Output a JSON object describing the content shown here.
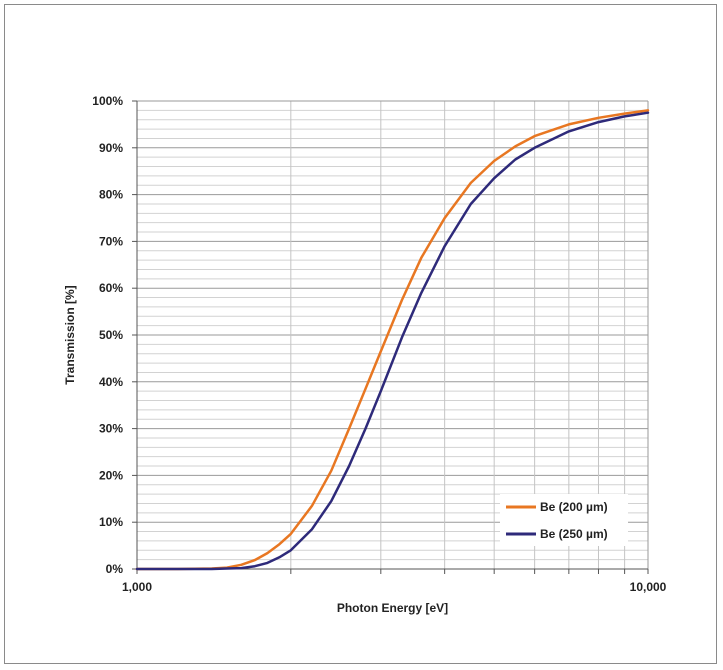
{
  "chart_data": {
    "type": "line",
    "xlabel": "Photon Energy [eV]",
    "ylabel": "Transmission [%]",
    "x_scale": "log",
    "xlim": [
      1000,
      10000
    ],
    "ylim": [
      0,
      100
    ],
    "x_ticks": [
      "1,000",
      "10,000"
    ],
    "y_ticks": [
      "0%",
      "10%",
      "20%",
      "30%",
      "40%",
      "50%",
      "60%",
      "70%",
      "80%",
      "90%",
      "100%"
    ],
    "grid": true,
    "legend_position": "bottom-right",
    "series": [
      {
        "name": "Be (200 µm)",
        "color": "#e87722",
        "x": [
          1000,
          1200,
          1400,
          1500,
          1600,
          1700,
          1800,
          1900,
          2000,
          2200,
          2400,
          2600,
          2800,
          3000,
          3300,
          3600,
          4000,
          4500,
          5000,
          5500,
          6000,
          7000,
          8000,
          9000,
          10000
        ],
        "y": [
          0,
          0,
          0.1,
          0.3,
          0.9,
          1.9,
          3.4,
          5.3,
          7.5,
          13.5,
          21.0,
          30.0,
          38.5,
          46.5,
          57.5,
          66.5,
          75.0,
          82.5,
          87.2,
          90.3,
          92.5,
          95.0,
          96.4,
          97.3,
          98.0
        ]
      },
      {
        "name": "Be (250 µm)",
        "color": "#2e2a7a",
        "x": [
          1000,
          1200,
          1400,
          1500,
          1600,
          1700,
          1800,
          1900,
          2000,
          2200,
          2400,
          2600,
          2800,
          3000,
          3300,
          3600,
          4000,
          4500,
          5000,
          5500,
          6000,
          7000,
          8000,
          9000,
          10000
        ],
        "y": [
          0,
          0,
          0,
          0.1,
          0.2,
          0.6,
          1.3,
          2.5,
          4.0,
          8.5,
          14.5,
          22.0,
          30.0,
          38.0,
          49.5,
          59.0,
          69.0,
          78.0,
          83.5,
          87.5,
          90.0,
          93.5,
          95.5,
          96.7,
          97.5
        ]
      }
    ]
  }
}
